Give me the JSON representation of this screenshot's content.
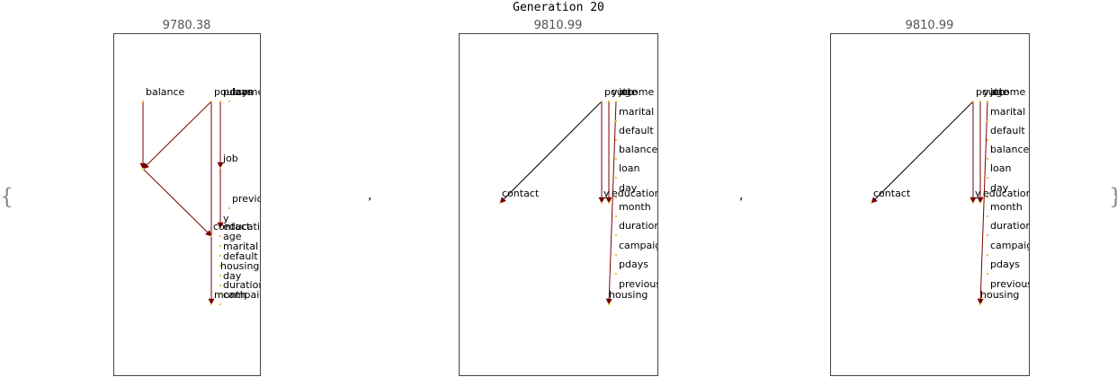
{
  "title": "Generation 20",
  "brace_open": "{",
  "brace_close": "}",
  "separator": ",",
  "colors": {
    "edge": "#7a0000",
    "edge_thin": "#000000",
    "node": "#f0c040",
    "frame": "#444444"
  },
  "panels": [
    {
      "score": "9780.38",
      "nodes": [
        {
          "id": "balance",
          "label": "balance"
        },
        {
          "id": "poutcome",
          "label": "poutcome"
        },
        {
          "id": "pdays",
          "label": "pdays"
        },
        {
          "id": "loan",
          "label": "loan"
        },
        {
          "id": "job",
          "label": "job"
        },
        {
          "id": "previous",
          "label": "previous"
        },
        {
          "id": "hub",
          "label": ""
        },
        {
          "id": "y",
          "label": "y"
        },
        {
          "id": "contact",
          "label": "contact"
        },
        {
          "id": "education",
          "label": "education"
        },
        {
          "id": "age",
          "label": "age"
        },
        {
          "id": "marital",
          "label": "marital"
        },
        {
          "id": "default",
          "label": "default"
        },
        {
          "id": "housing",
          "label": "housing"
        },
        {
          "id": "day",
          "label": "day"
        },
        {
          "id": "duration",
          "label": "duration"
        },
        {
          "id": "month",
          "label": "month"
        },
        {
          "id": "campaign",
          "label": "campaign"
        }
      ],
      "edges": [
        {
          "from": "balance",
          "to": "hub"
        },
        {
          "from": "poutcome",
          "to": "hub"
        },
        {
          "from": "hub",
          "to": "contact"
        },
        {
          "from": "poutcome",
          "to": "month"
        },
        {
          "from": "pdays",
          "to": "job"
        },
        {
          "from": "job",
          "to": "y"
        }
      ]
    },
    {
      "score": "9810.99",
      "nodes": [
        {
          "id": "poutcome",
          "label": "poutcome"
        },
        {
          "id": "y",
          "label": "y"
        },
        {
          "id": "job",
          "label": "job"
        },
        {
          "id": "age",
          "label": "age"
        },
        {
          "id": "marital",
          "label": "marital"
        },
        {
          "id": "default",
          "label": "default"
        },
        {
          "id": "balance",
          "label": "balance"
        },
        {
          "id": "loan",
          "label": "loan"
        },
        {
          "id": "day",
          "label": "day"
        },
        {
          "id": "contact",
          "label": "contact"
        },
        {
          "id": "y2",
          "label": "y"
        },
        {
          "id": "education",
          "label": "education"
        },
        {
          "id": "month",
          "label": "month"
        },
        {
          "id": "duration",
          "label": "duration"
        },
        {
          "id": "campaign",
          "label": "campaign"
        },
        {
          "id": "pdays",
          "label": "pdays"
        },
        {
          "id": "previous",
          "label": "previous"
        },
        {
          "id": "housing",
          "label": "housing"
        }
      ],
      "edges": [
        {
          "from": "poutcome",
          "to": "contact",
          "thin": true
        },
        {
          "from": "poutcome",
          "to": "y2"
        },
        {
          "from": "y",
          "to": "education"
        },
        {
          "from": "job",
          "to": "housing"
        }
      ]
    },
    {
      "score": "9810.99",
      "nodes": [
        {
          "id": "poutcome",
          "label": "poutcome"
        },
        {
          "id": "y",
          "label": "y"
        },
        {
          "id": "job",
          "label": "job"
        },
        {
          "id": "age",
          "label": "age"
        },
        {
          "id": "marital",
          "label": "marital"
        },
        {
          "id": "default",
          "label": "default"
        },
        {
          "id": "balance",
          "label": "balance"
        },
        {
          "id": "loan",
          "label": "loan"
        },
        {
          "id": "day",
          "label": "day"
        },
        {
          "id": "contact",
          "label": "contact"
        },
        {
          "id": "y2",
          "label": "y"
        },
        {
          "id": "education",
          "label": "education"
        },
        {
          "id": "month",
          "label": "month"
        },
        {
          "id": "duration",
          "label": "duration"
        },
        {
          "id": "campaign",
          "label": "campaign"
        },
        {
          "id": "pdays",
          "label": "pdays"
        },
        {
          "id": "previous",
          "label": "previous"
        },
        {
          "id": "housing",
          "label": "housing"
        }
      ],
      "edges": [
        {
          "from": "poutcome",
          "to": "contact",
          "thin": true
        },
        {
          "from": "poutcome",
          "to": "y2"
        },
        {
          "from": "y",
          "to": "education"
        },
        {
          "from": "job",
          "to": "housing"
        }
      ]
    }
  ]
}
